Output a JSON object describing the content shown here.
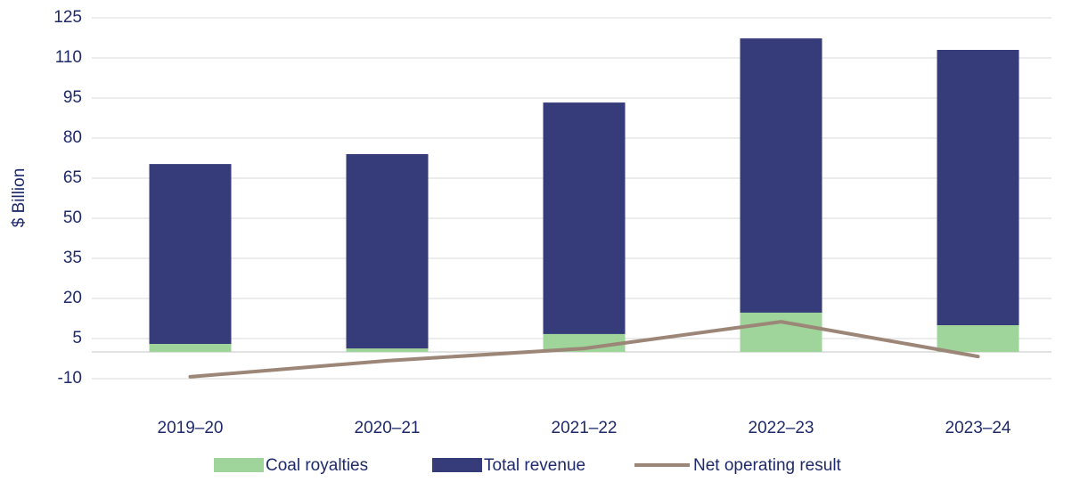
{
  "chart_data": {
    "type": "bar",
    "y_label": "$ Billion",
    "categories": [
      "2019–20",
      "2020–21",
      "2021–22",
      "2022–23",
      "2023–24"
    ],
    "series": [
      {
        "name": "Coal royalties",
        "color": "#9fd49a",
        "values": [
          3.0,
          1.3,
          6.7,
          14.7,
          10.0
        ]
      },
      {
        "name": "Total revenue",
        "color": "#363c7a",
        "values": [
          70.3,
          74.0,
          93.3,
          117.3,
          113.0
        ]
      },
      {
        "name": "Net operating result",
        "color": "#9c8677",
        "type": "line",
        "values": [
          -9.3,
          -3.3,
          1.3,
          11.3,
          -1.7
        ]
      }
    ],
    "ylim": [
      -10,
      125
    ],
    "yticks": [
      -10,
      5,
      20,
      35,
      50,
      65,
      80,
      95,
      110,
      125
    ],
    "grid": true,
    "legend": "bottom"
  }
}
